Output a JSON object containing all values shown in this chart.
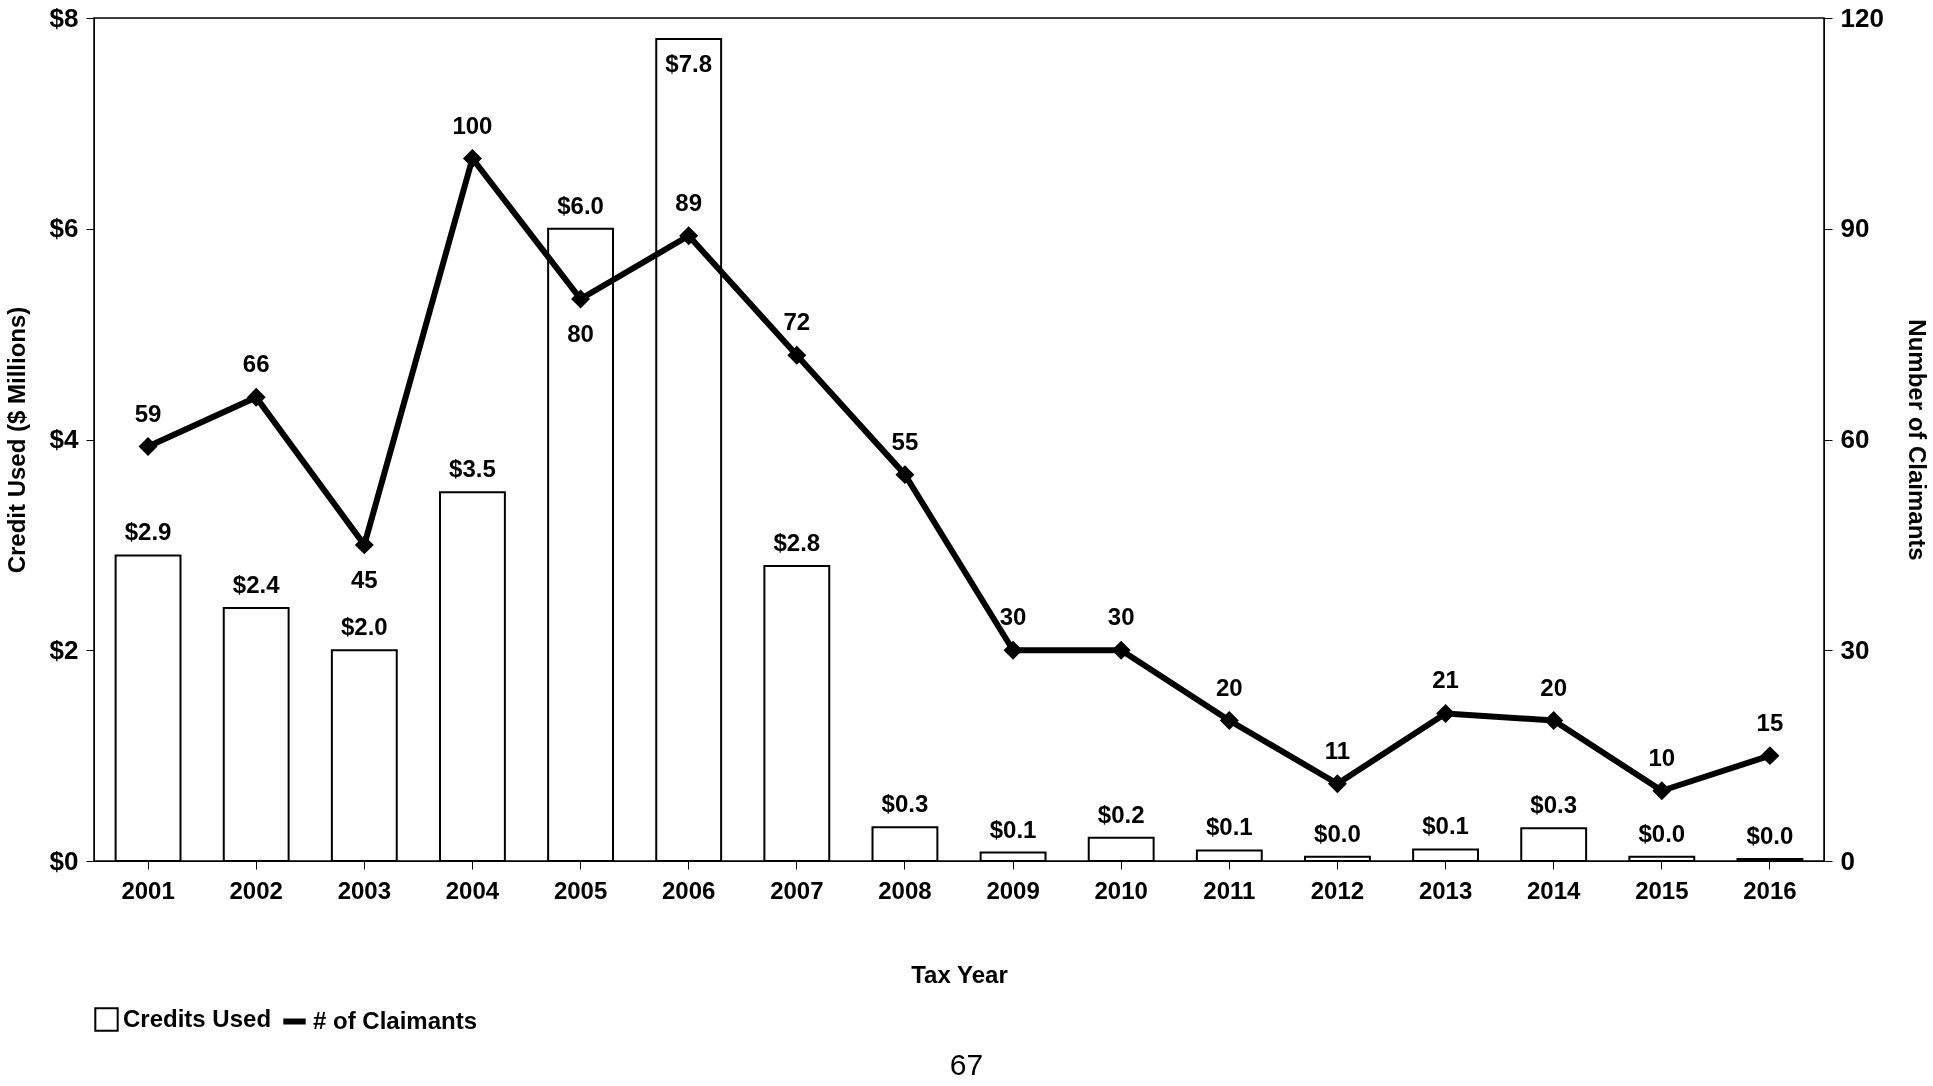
{
  "chart_data": {
    "type": "bar",
    "xlabel": "Tax Year",
    "ylabel": "Credit Used ($ Millions)",
    "y2label": "Number of Claimants",
    "categories": [
      "2001",
      "2002",
      "2003",
      "2004",
      "2005",
      "2006",
      "2007",
      "2008",
      "2009",
      "2010",
      "2011",
      "2012",
      "2013",
      "2014",
      "2015",
      "2016"
    ],
    "series": [
      {
        "name": "Credits Used",
        "color": "#ffffff",
        "values": [
          2.9,
          2.4,
          2.0,
          3.5,
          6.0,
          7.8,
          2.8,
          0.32,
          0.08,
          0.22,
          0.1,
          0.04,
          0.11,
          0.31,
          0.04,
          0.02
        ],
        "value_labels": [
          "$2.9",
          "$2.4",
          "$2.0",
          "$3.5",
          "$6.0",
          "$7.8",
          "$2.8",
          "$0.3",
          "$0.1",
          "$0.2",
          "$0.1",
          "$0.0",
          "$0.1",
          "$0.3",
          "$0.0",
          "$0.0"
        ]
      },
      {
        "name": "# of Claimants",
        "type": "line",
        "axis": "y2",
        "color": "#000000",
        "marker": "diamond",
        "values": [
          59,
          66,
          45,
          100,
          80,
          89,
          72,
          55,
          30,
          30,
          20,
          11,
          21,
          20,
          10,
          15
        ],
        "value_labels": [
          "59",
          "66",
          "45",
          "100",
          "80",
          "89",
          "72",
          "55",
          "30",
          "30",
          "20",
          "11",
          "21",
          "20",
          "10",
          "15"
        ]
      }
    ],
    "ylim": [
      0,
      8
    ],
    "yticks": [
      {
        "value": 0,
        "label": "$0"
      },
      {
        "value": 2,
        "label": "$2"
      },
      {
        "value": 4,
        "label": "$4"
      },
      {
        "value": 6,
        "label": "$6"
      },
      {
        "value": 8,
        "label": "$8"
      }
    ],
    "y2lim": [
      0,
      120
    ],
    "y2ticks": [
      0,
      30,
      60,
      90,
      120
    ],
    "legend": "bottom",
    "annotations": [
      "67"
    ]
  }
}
